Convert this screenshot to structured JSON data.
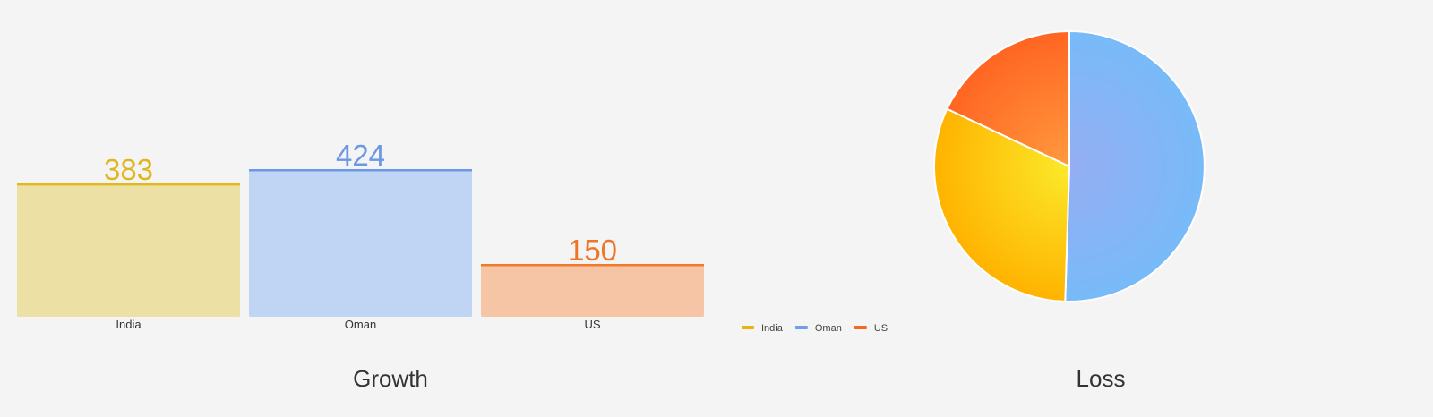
{
  "chart_data": [
    {
      "type": "bar",
      "title": "Growth",
      "categories": [
        "India",
        "Oman",
        "US"
      ],
      "values": [
        383,
        424,
        150
      ],
      "show_data_labels": true,
      "grid": false,
      "ylim": [
        0,
        424
      ],
      "colors": {
        "India": {
          "line": "#e2b81c",
          "fill": "#ede0a4",
          "label": "#e0b51e"
        },
        "Oman": {
          "line": "#6b98e6",
          "fill": "#c0d4f4",
          "label": "#6b97e4"
        },
        "US": {
          "line": "#f07a2a",
          "fill": "#f6c5a6",
          "label": "#ef7628"
        }
      }
    },
    {
      "type": "pie",
      "title": "Loss",
      "categories": [
        "India",
        "Oman",
        "US"
      ],
      "values": [
        31.5,
        50.5,
        18.0
      ],
      "legend": {
        "position": "left",
        "items": [
          "India",
          "Oman",
          "US"
        ]
      },
      "colors": {
        "India": {
          "outer": "#ffb300",
          "inner": "#fbe92a",
          "swatch": "#e8b40e"
        },
        "Oman": {
          "outer": "#78baf8",
          "inner": "#95aef3",
          "swatch": "#6d9eef"
        },
        "US": {
          "outer": "#ff6522",
          "inner": "#ff9a3e",
          "swatch": "#f36a24"
        }
      }
    }
  ]
}
